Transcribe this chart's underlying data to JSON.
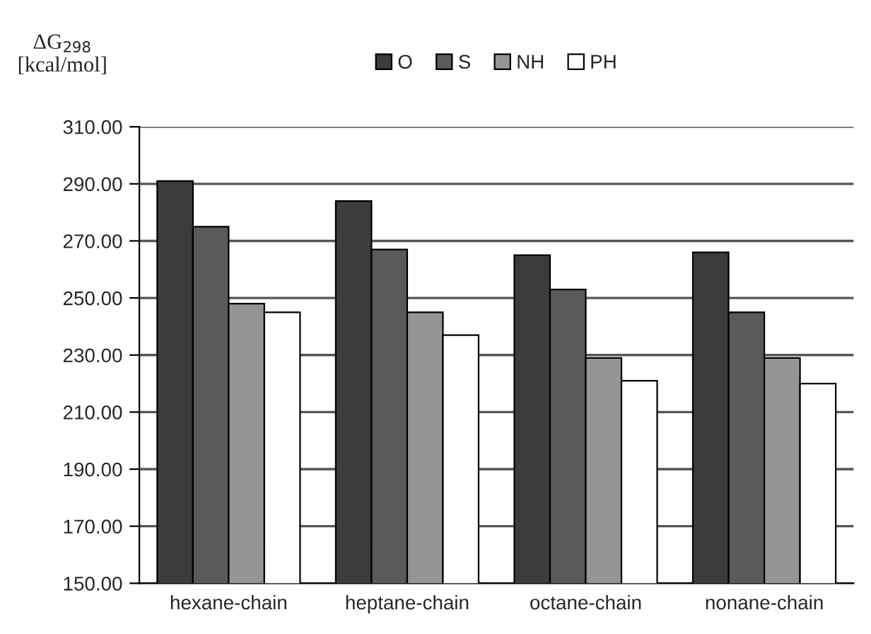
{
  "chart_data": {
    "type": "bar",
    "ylabel": "ΔG$_{298}$\n[kcal/mol]",
    "categories": [
      "hexane-chain",
      "heptane-chain",
      "octane-chain",
      "nonane-chain"
    ],
    "series": [
      {
        "name": "O",
        "color": "#3c3c3c",
        "values": [
          291,
          284,
          265,
          266
        ]
      },
      {
        "name": "S",
        "color": "#5a5a5a",
        "values": [
          275,
          267,
          253,
          245
        ]
      },
      {
        "name": "NH",
        "color": "#959595",
        "values": [
          248,
          245,
          229,
          229
        ]
      },
      {
        "name": "PH",
        "color": "#ffffff",
        "values": [
          245,
          237,
          221,
          220
        ]
      }
    ],
    "ylim": [
      150,
      310
    ],
    "yticks": [
      {
        "value": 150,
        "label": "150.00"
      },
      {
        "value": 170,
        "label": "170.00"
      },
      {
        "value": 190,
        "label": "190.00"
      },
      {
        "value": 210,
        "label": "210.00"
      },
      {
        "value": 230,
        "label": "230.00"
      },
      {
        "value": 250,
        "label": "250.00"
      },
      {
        "value": 270,
        "label": "270.00"
      },
      {
        "value": 290,
        "label": "290.00"
      },
      {
        "value": 310,
        "label": "310.00"
      }
    ],
    "grid": "y",
    "legend": "top"
  }
}
